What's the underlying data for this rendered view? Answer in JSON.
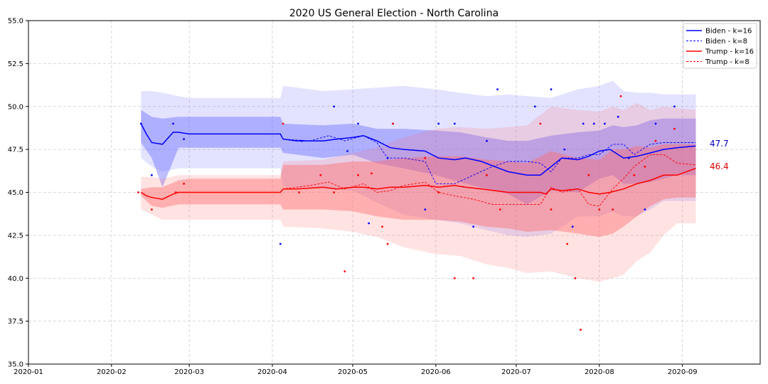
{
  "chart_data": {
    "type": "line",
    "title": "2020 US General Election - North Carolina",
    "xlabel": "",
    "ylabel": "",
    "xlim": [
      "2020-01-01",
      "2020-09-30"
    ],
    "ylim": [
      35.0,
      55.0
    ],
    "x_ticks": [
      "2020-01",
      "2020-02",
      "2020-03",
      "2020-04",
      "2020-05",
      "2020-06",
      "2020-07",
      "2020-08",
      "2020-09"
    ],
    "y_ticks": [
      "35.0",
      "37.5",
      "40.0",
      "42.5",
      "45.0",
      "47.5",
      "50.0",
      "52.5",
      "55.0"
    ],
    "grid": true,
    "legend": {
      "position": "top-right",
      "entries": [
        "Biden - k=16",
        "Biden - k=8",
        "Trump - k=16",
        "Trump - k=8"
      ]
    },
    "colors": {
      "biden": "#0000ff",
      "trump": "#ff0000",
      "biden_band": "#6666ff",
      "trump_band": "#ff6666"
    },
    "end_labels": {
      "biden": "47.7",
      "trump": "46.4"
    },
    "series": [
      {
        "name": "Biden - k=16",
        "style": "solid",
        "x": [
          "2020-02-12",
          "2020-02-14",
          "2020-02-16",
          "2020-02-20",
          "2020-02-24",
          "2020-02-26",
          "2020-03-01",
          "2020-03-10",
          "2020-03-20",
          "2020-04-04",
          "2020-04-05",
          "2020-04-10",
          "2020-04-20",
          "2020-04-25",
          "2020-05-01",
          "2020-05-05",
          "2020-05-10",
          "2020-05-15",
          "2020-05-20",
          "2020-05-28",
          "2020-06-02",
          "2020-06-08",
          "2020-06-12",
          "2020-06-18",
          "2020-06-23",
          "2020-06-28",
          "2020-07-05",
          "2020-07-10",
          "2020-07-14",
          "2020-07-18",
          "2020-07-24",
          "2020-07-28",
          "2020-08-01",
          "2020-08-05",
          "2020-08-10",
          "2020-08-15",
          "2020-08-20",
          "2020-08-25",
          "2020-08-30",
          "2020-09-06"
        ],
        "y": [
          49.0,
          48.4,
          47.9,
          47.8,
          48.5,
          48.5,
          48.4,
          48.4,
          48.4,
          48.4,
          48.1,
          48.0,
          48.0,
          48.1,
          48.2,
          48.3,
          48.0,
          47.6,
          47.5,
          47.4,
          47.0,
          46.9,
          47.0,
          46.8,
          46.5,
          46.2,
          46.0,
          46.0,
          46.5,
          47.0,
          46.9,
          47.1,
          47.4,
          47.5,
          47.0,
          47.1,
          47.3,
          47.5,
          47.6,
          47.7
        ]
      },
      {
        "name": "Biden - k=8",
        "style": "dashed",
        "x": [
          "2020-02-12",
          "2020-02-14",
          "2020-02-16",
          "2020-02-20",
          "2020-02-24",
          "2020-02-26",
          "2020-03-01",
          "2020-03-20",
          "2020-04-04",
          "2020-04-05",
          "2020-04-15",
          "2020-04-22",
          "2020-04-28",
          "2020-05-05",
          "2020-05-10",
          "2020-05-14",
          "2020-05-20",
          "2020-05-28",
          "2020-06-01",
          "2020-06-08",
          "2020-06-15",
          "2020-06-22",
          "2020-06-28",
          "2020-07-05",
          "2020-07-10",
          "2020-07-14",
          "2020-07-18",
          "2020-07-24",
          "2020-07-28",
          "2020-08-01",
          "2020-08-06",
          "2020-08-10",
          "2020-08-14",
          "2020-08-20",
          "2020-08-25",
          "2020-08-30",
          "2020-09-06"
        ],
        "y": [
          49.0,
          48.4,
          47.9,
          47.8,
          48.5,
          48.5,
          48.4,
          48.4,
          48.4,
          48.1,
          48.0,
          48.3,
          48.0,
          48.3,
          47.9,
          47.0,
          47.0,
          46.8,
          45.5,
          45.5,
          46.0,
          46.5,
          46.8,
          46.8,
          46.7,
          46.2,
          47.0,
          47.0,
          47.2,
          47.2,
          47.8,
          47.8,
          47.2,
          47.8,
          47.9,
          47.9,
          47.9
        ]
      },
      {
        "name": "Trump - k=16",
        "style": "solid",
        "x": [
          "2020-02-12",
          "2020-02-14",
          "2020-02-16",
          "2020-02-20",
          "2020-02-24",
          "2020-02-26",
          "2020-03-01",
          "2020-03-10",
          "2020-03-20",
          "2020-04-04",
          "2020-04-05",
          "2020-04-10",
          "2020-04-20",
          "2020-04-25",
          "2020-05-01",
          "2020-05-05",
          "2020-05-10",
          "2020-05-15",
          "2020-05-20",
          "2020-05-28",
          "2020-06-02",
          "2020-06-08",
          "2020-06-12",
          "2020-06-18",
          "2020-06-23",
          "2020-06-28",
          "2020-07-05",
          "2020-07-10",
          "2020-07-12",
          "2020-07-14",
          "2020-07-18",
          "2020-07-24",
          "2020-07-28",
          "2020-08-01",
          "2020-08-05",
          "2020-08-10",
          "2020-08-15",
          "2020-08-20",
          "2020-08-25",
          "2020-08-30",
          "2020-09-06"
        ],
        "y": [
          45.0,
          44.8,
          44.7,
          44.6,
          44.9,
          45.0,
          45.0,
          45.0,
          45.0,
          45.0,
          45.2,
          45.2,
          45.3,
          45.2,
          45.3,
          45.3,
          45.2,
          45.3,
          45.3,
          45.4,
          45.3,
          45.4,
          45.3,
          45.2,
          45.1,
          45.0,
          45.0,
          45.0,
          44.9,
          45.2,
          45.1,
          45.2,
          45.0,
          44.9,
          45.0,
          45.2,
          45.5,
          45.7,
          46.0,
          46.0,
          46.4
        ]
      },
      {
        "name": "Trump - k=8",
        "style": "dashed",
        "x": [
          "2020-02-12",
          "2020-02-14",
          "2020-02-16",
          "2020-02-20",
          "2020-02-24",
          "2020-02-26",
          "2020-03-01",
          "2020-03-20",
          "2020-04-04",
          "2020-04-05",
          "2020-04-15",
          "2020-04-22",
          "2020-04-28",
          "2020-05-05",
          "2020-05-10",
          "2020-05-15",
          "2020-05-20",
          "2020-05-28",
          "2020-06-02",
          "2020-06-08",
          "2020-06-15",
          "2020-06-22",
          "2020-06-28",
          "2020-07-05",
          "2020-07-10",
          "2020-07-14",
          "2020-07-18",
          "2020-07-24",
          "2020-07-28",
          "2020-08-01",
          "2020-08-06",
          "2020-08-10",
          "2020-08-14",
          "2020-08-20",
          "2020-08-25",
          "2020-08-30",
          "2020-09-06"
        ],
        "y": [
          45.0,
          44.8,
          44.7,
          44.6,
          44.9,
          45.0,
          45.0,
          45.0,
          45.0,
          45.2,
          45.4,
          45.6,
          45.2,
          45.5,
          45.0,
          45.1,
          45.4,
          45.6,
          45.0,
          44.8,
          44.6,
          44.3,
          44.3,
          44.3,
          44.3,
          45.3,
          45.0,
          45.2,
          44.3,
          44.2,
          45.2,
          45.8,
          46.5,
          47.2,
          47.2,
          46.7,
          46.6
        ]
      }
    ],
    "bands": [
      {
        "party": "biden",
        "level": "outer",
        "x": [
          "2020-02-12",
          "2020-02-16",
          "2020-02-20",
          "2020-02-26",
          "2020-03-01",
          "2020-03-20",
          "2020-04-04",
          "2020-04-05",
          "2020-04-20",
          "2020-05-01",
          "2020-05-10",
          "2020-05-20",
          "2020-06-01",
          "2020-06-10",
          "2020-06-20",
          "2020-06-28",
          "2020-07-05",
          "2020-07-14",
          "2020-07-24",
          "2020-08-01",
          "2020-08-06",
          "2020-08-10",
          "2020-08-15",
          "2020-08-20",
          "2020-08-25",
          "2020-08-30",
          "2020-09-06"
        ],
        "upper": [
          50.9,
          50.9,
          50.8,
          50.6,
          50.5,
          50.5,
          50.5,
          51.2,
          50.9,
          51.0,
          51.1,
          51.2,
          51.0,
          50.8,
          50.6,
          50.7,
          50.6,
          50.5,
          51.0,
          51.2,
          51.5,
          50.9,
          50.8,
          50.8,
          50.7,
          50.7,
          50.7
        ],
        "lower": [
          47.0,
          46.5,
          46.2,
          46.4,
          46.4,
          46.4,
          46.4,
          45.3,
          45.2,
          45.1,
          44.4,
          43.7,
          43.4,
          43.2,
          42.8,
          42.5,
          42.4,
          42.6,
          43.6,
          43.6,
          43.9,
          43.6,
          43.6,
          44.0,
          44.5,
          44.5,
          44.5
        ]
      },
      {
        "party": "biden",
        "level": "inner",
        "x": [
          "2020-02-12",
          "2020-02-16",
          "2020-02-20",
          "2020-02-26",
          "2020-03-01",
          "2020-03-20",
          "2020-04-04",
          "2020-04-05",
          "2020-04-20",
          "2020-05-01",
          "2020-05-10",
          "2020-05-20",
          "2020-06-01",
          "2020-06-10",
          "2020-06-20",
          "2020-06-28",
          "2020-07-05",
          "2020-07-14",
          "2020-07-24",
          "2020-08-01",
          "2020-08-06",
          "2020-08-10",
          "2020-08-15",
          "2020-08-20",
          "2020-08-25",
          "2020-08-30",
          "2020-09-06"
        ],
        "upper": [
          49.8,
          49.4,
          49.3,
          49.4,
          49.4,
          49.4,
          49.4,
          49.0,
          48.9,
          49.0,
          48.7,
          48.7,
          48.6,
          48.5,
          48.2,
          48.0,
          48.0,
          48.3,
          48.5,
          48.6,
          48.9,
          48.8,
          48.9,
          49.2,
          49.3,
          49.3,
          49.3
        ],
        "lower": [
          47.9,
          47.0,
          45.3,
          47.6,
          47.6,
          47.6,
          47.6,
          47.3,
          47.0,
          47.2,
          46.7,
          46.4,
          46.0,
          45.6,
          45.2,
          44.9,
          44.3,
          45.1,
          45.0,
          45.8,
          46.0,
          45.5,
          45.5,
          45.6,
          45.8,
          46.0,
          46.0
        ]
      },
      {
        "party": "trump",
        "level": "outer",
        "x": [
          "2020-02-12",
          "2020-02-16",
          "2020-02-20",
          "2020-02-26",
          "2020-03-01",
          "2020-03-20",
          "2020-04-04",
          "2020-04-05",
          "2020-04-20",
          "2020-05-01",
          "2020-05-10",
          "2020-05-20",
          "2020-06-01",
          "2020-06-10",
          "2020-06-20",
          "2020-06-28",
          "2020-07-05",
          "2020-07-14",
          "2020-07-24",
          "2020-08-01",
          "2020-08-06",
          "2020-08-10",
          "2020-08-15",
          "2020-08-20",
          "2020-08-25",
          "2020-08-30",
          "2020-09-06"
        ],
        "upper": [
          45.9,
          45.9,
          45.8,
          46.0,
          46.0,
          46.0,
          46.0,
          46.8,
          46.9,
          47.3,
          47.6,
          48.2,
          48.7,
          48.8,
          48.7,
          48.8,
          48.9,
          50.0,
          49.8,
          49.7,
          50.0,
          49.8,
          50.2,
          49.8,
          50.0,
          49.9,
          49.8
        ],
        "lower": [
          44.0,
          43.7,
          43.4,
          43.4,
          43.4,
          43.4,
          43.4,
          43.0,
          42.9,
          42.7,
          42.4,
          41.8,
          41.4,
          41.3,
          40.8,
          40.6,
          40.3,
          40.4,
          40.0,
          39.8,
          40.0,
          40.2,
          41.0,
          41.5,
          42.5,
          43.2,
          43.2
        ]
      },
      {
        "party": "trump",
        "level": "inner",
        "x": [
          "2020-02-12",
          "2020-02-16",
          "2020-02-20",
          "2020-02-26",
          "2020-03-01",
          "2020-03-20",
          "2020-04-04",
          "2020-04-05",
          "2020-04-20",
          "2020-05-01",
          "2020-05-10",
          "2020-05-20",
          "2020-06-01",
          "2020-06-10",
          "2020-06-20",
          "2020-06-28",
          "2020-07-05",
          "2020-07-14",
          "2020-07-24",
          "2020-08-01",
          "2020-08-06",
          "2020-08-10",
          "2020-08-15",
          "2020-08-20",
          "2020-08-25",
          "2020-08-30",
          "2020-09-06"
        ],
        "upper": [
          45.2,
          45.3,
          45.3,
          45.7,
          45.8,
          45.8,
          45.8,
          46.6,
          46.6,
          46.8,
          46.8,
          47.0,
          47.1,
          47.1,
          46.9,
          46.8,
          46.7,
          47.4,
          47.0,
          46.9,
          47.5,
          47.5,
          47.7,
          47.6,
          47.8,
          47.8,
          47.8
        ],
        "lower": [
          44.8,
          44.2,
          44.1,
          44.3,
          44.3,
          44.3,
          44.3,
          44.0,
          44.0,
          43.9,
          43.6,
          43.4,
          43.4,
          43.3,
          43.0,
          42.9,
          42.7,
          42.8,
          42.6,
          42.4,
          42.6,
          43.0,
          43.6,
          44.2,
          44.6,
          44.7,
          44.7
        ]
      }
    ],
    "polls": {
      "biden": [
        [
          "2020-02-12",
          49.0
        ],
        [
          "2020-02-16",
          46.0
        ],
        [
          "2020-02-24",
          49.0
        ],
        [
          "2020-02-28",
          48.1
        ],
        [
          "2020-04-04",
          42.0
        ],
        [
          "2020-04-12",
          48.0
        ],
        [
          "2020-04-24",
          50.0
        ],
        [
          "2020-04-29",
          47.4
        ],
        [
          "2020-05-03",
          49.0
        ],
        [
          "2020-05-07",
          43.2
        ],
        [
          "2020-05-14",
          47.0
        ],
        [
          "2020-05-16",
          49.0
        ],
        [
          "2020-05-28",
          44.0
        ],
        [
          "2020-06-02",
          49.0
        ],
        [
          "2020-06-08",
          49.0
        ],
        [
          "2020-06-15",
          43.0
        ],
        [
          "2020-06-20",
          48.0
        ],
        [
          "2020-06-24",
          51.0
        ],
        [
          "2020-07-08",
          50.0
        ],
        [
          "2020-07-14",
          51.0
        ],
        [
          "2020-07-19",
          47.5
        ],
        [
          "2020-07-22",
          43.0
        ],
        [
          "2020-07-26",
          49.0
        ],
        [
          "2020-07-30",
          49.0
        ],
        [
          "2020-08-03",
          49.0
        ],
        [
          "2020-08-08",
          49.4
        ],
        [
          "2020-08-12",
          47.0
        ],
        [
          "2020-08-18",
          44.0
        ],
        [
          "2020-08-22",
          49.0
        ],
        [
          "2020-08-29",
          50.0
        ]
      ],
      "trump": [
        [
          "2020-02-11",
          45.0
        ],
        [
          "2020-02-16",
          44.0
        ],
        [
          "2020-02-25",
          45.0
        ],
        [
          "2020-02-28",
          45.5
        ],
        [
          "2020-04-05",
          49.0
        ],
        [
          "2020-04-11",
          45.0
        ],
        [
          "2020-04-19",
          46.0
        ],
        [
          "2020-04-24",
          45.0
        ],
        [
          "2020-04-28",
          40.4
        ],
        [
          "2020-05-03",
          46.0
        ],
        [
          "2020-05-08",
          46.1
        ],
        [
          "2020-05-12",
          43.0
        ],
        [
          "2020-05-14",
          42.0
        ],
        [
          "2020-05-16",
          49.0
        ],
        [
          "2020-05-28",
          47.0
        ],
        [
          "2020-06-02",
          45.0
        ],
        [
          "2020-06-08",
          40.0
        ],
        [
          "2020-06-15",
          40.0
        ],
        [
          "2020-06-20",
          46.0
        ],
        [
          "2020-06-25",
          44.0
        ],
        [
          "2020-07-10",
          49.0
        ],
        [
          "2020-07-14",
          44.0
        ],
        [
          "2020-07-20",
          42.0
        ],
        [
          "2020-07-23",
          40.0
        ],
        [
          "2020-07-25",
          37.0
        ],
        [
          "2020-07-28",
          46.0
        ],
        [
          "2020-08-01",
          44.0
        ],
        [
          "2020-08-06",
          44.0
        ],
        [
          "2020-08-09",
          50.6
        ],
        [
          "2020-08-14",
          46.0
        ],
        [
          "2020-08-18",
          46.5
        ],
        [
          "2020-08-22",
          48.0
        ],
        [
          "2020-08-29",
          48.7
        ]
      ]
    }
  }
}
